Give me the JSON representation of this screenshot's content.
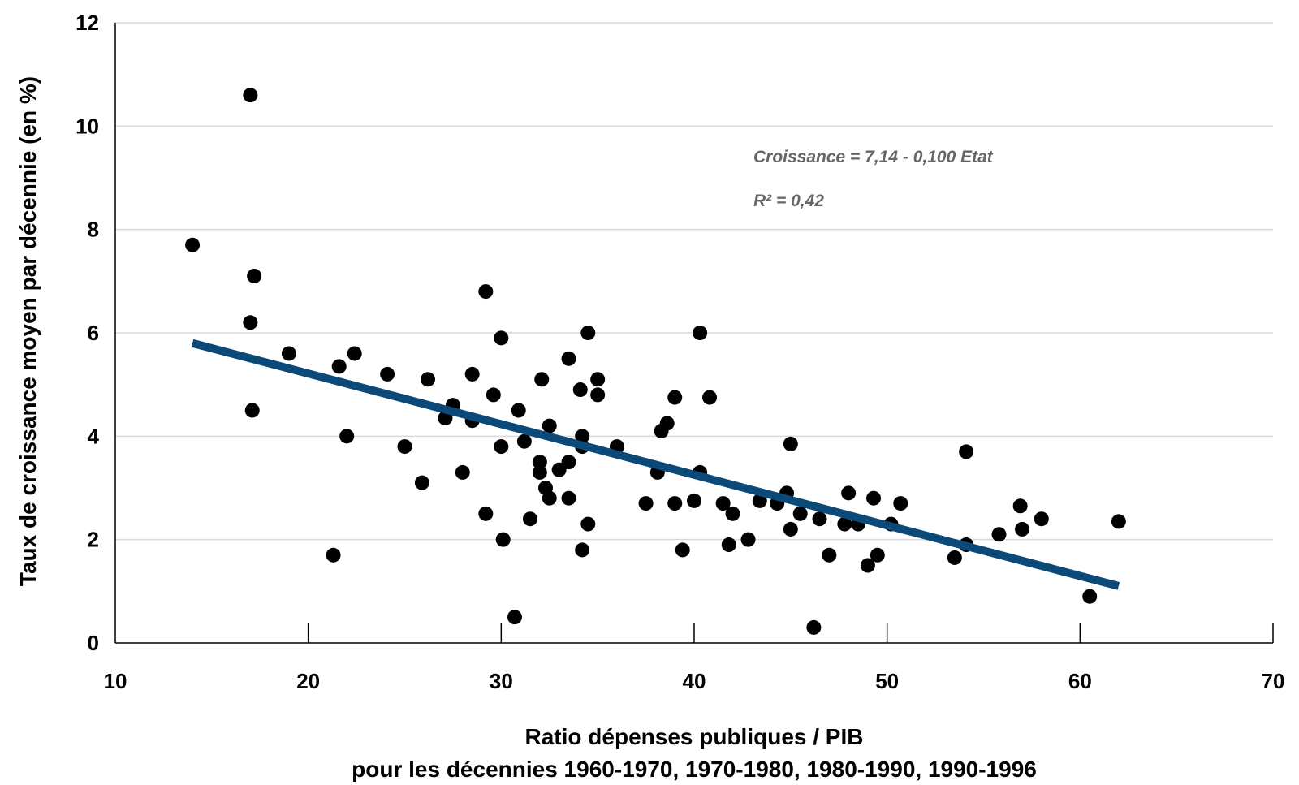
{
  "chart_data": {
    "type": "scatter",
    "xlabel": "Ratio dépenses publiques / PIB",
    "xlabel_line2": "pour les décennies 1960-1970, 1970-1980, 1980-1990, 1990-1996",
    "ylabel": "Taux de croissance moyen par décennie (en %)",
    "xlim": [
      10,
      70
    ],
    "ylim": [
      0,
      12
    ],
    "xticks": [
      10,
      20,
      30,
      40,
      50,
      60,
      70
    ],
    "yticks": [
      0,
      2,
      4,
      6,
      8,
      10,
      12
    ],
    "grid": "horizontal",
    "legend": "none",
    "annotations": [
      "Croissance = 7,14 - 0,100 Etat",
      "R² = 0,42"
    ],
    "colors": {
      "points": "#000000",
      "trendline": "#0b4a78",
      "grid": "#d9d9d9",
      "annotation": "#666666"
    },
    "trendline": {
      "x1": 14,
      "y1": 5.8,
      "x2": 62,
      "y2": 1.1
    },
    "points": [
      [
        14.0,
        7.7
      ],
      [
        17.0,
        10.6
      ],
      [
        17.2,
        7.1
      ],
      [
        17.0,
        6.2
      ],
      [
        17.1,
        4.5
      ],
      [
        19.0,
        5.6
      ],
      [
        21.6,
        5.35
      ],
      [
        22.4,
        5.6
      ],
      [
        22.0,
        4.0
      ],
      [
        21.3,
        1.7
      ],
      [
        24.1,
        5.2
      ],
      [
        25.0,
        3.8
      ],
      [
        26.2,
        5.1
      ],
      [
        25.9,
        3.1
      ],
      [
        27.1,
        4.35
      ],
      [
        27.5,
        4.6
      ],
      [
        28.0,
        3.3
      ],
      [
        28.5,
        5.2
      ],
      [
        28.5,
        4.3
      ],
      [
        29.2,
        6.8
      ],
      [
        29.2,
        2.5
      ],
      [
        29.6,
        4.8
      ],
      [
        30.0,
        5.9
      ],
      [
        30.0,
        3.8
      ],
      [
        30.1,
        2.0
      ],
      [
        30.7,
        0.5
      ],
      [
        30.9,
        4.5
      ],
      [
        31.2,
        3.9
      ],
      [
        31.5,
        2.4
      ],
      [
        32.0,
        3.5
      ],
      [
        32.0,
        3.3
      ],
      [
        32.1,
        5.1
      ],
      [
        32.3,
        3.0
      ],
      [
        32.5,
        4.2
      ],
      [
        32.5,
        2.8
      ],
      [
        33.0,
        3.35
      ],
      [
        33.5,
        5.5
      ],
      [
        33.5,
        3.5
      ],
      [
        33.5,
        2.8
      ],
      [
        34.1,
        4.9
      ],
      [
        34.2,
        4.0
      ],
      [
        34.2,
        3.8
      ],
      [
        34.2,
        1.8
      ],
      [
        34.5,
        6.0
      ],
      [
        34.5,
        2.3
      ],
      [
        35.0,
        5.1
      ],
      [
        35.0,
        4.8
      ],
      [
        36.0,
        3.8
      ],
      [
        37.5,
        2.7
      ],
      [
        38.1,
        3.3
      ],
      [
        38.3,
        4.1
      ],
      [
        38.6,
        4.25
      ],
      [
        39.0,
        4.75
      ],
      [
        39.0,
        2.7
      ],
      [
        39.4,
        1.8
      ],
      [
        40.0,
        2.75
      ],
      [
        40.3,
        6.0
      ],
      [
        40.3,
        3.3
      ],
      [
        40.8,
        4.75
      ],
      [
        41.5,
        2.7
      ],
      [
        41.8,
        1.9
      ],
      [
        42.0,
        2.5
      ],
      [
        42.8,
        2.0
      ],
      [
        43.4,
        2.75
      ],
      [
        44.3,
        2.7
      ],
      [
        44.8,
        2.9
      ],
      [
        45.0,
        3.85
      ],
      [
        45.0,
        2.2
      ],
      [
        45.5,
        2.5
      ],
      [
        46.2,
        0.3
      ],
      [
        46.5,
        2.4
      ],
      [
        47.0,
        1.7
      ],
      [
        47.8,
        2.3
      ],
      [
        48.0,
        2.9
      ],
      [
        48.5,
        2.3
      ],
      [
        49.0,
        1.5
      ],
      [
        49.3,
        2.8
      ],
      [
        49.5,
        1.7
      ],
      [
        50.2,
        2.3
      ],
      [
        50.7,
        2.7
      ],
      [
        53.5,
        1.65
      ],
      [
        54.1,
        3.7
      ],
      [
        54.1,
        1.9
      ],
      [
        55.8,
        2.1
      ],
      [
        56.9,
        2.65
      ],
      [
        57.0,
        2.2
      ],
      [
        58.0,
        2.4
      ],
      [
        60.5,
        0.9
      ],
      [
        62.0,
        2.35
      ]
    ]
  }
}
